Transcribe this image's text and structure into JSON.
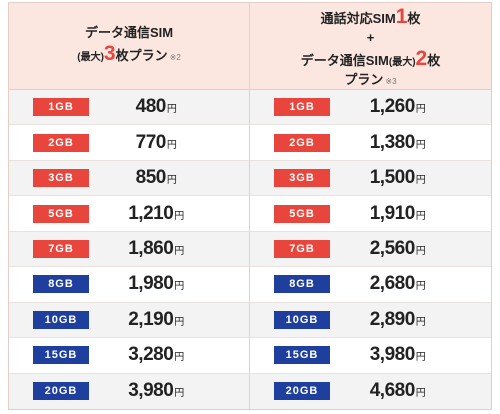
{
  "left_header": {
    "line1": "データ通信SIM",
    "line2_prefix": "(最大)",
    "line2_number": "3",
    "line2_suffix": "枚プラン",
    "line2_note": "※2"
  },
  "right_header": {
    "line1_prefix": "通話対応SIM",
    "line1_number": "1",
    "line1_suffix": "枚",
    "line2": "+",
    "line3_prefix": "データ通信SIM",
    "line3_max": "(最大)",
    "line3_number": "2",
    "line3_suffix": "枚",
    "line4": "プラン",
    "line4_note": "※3"
  },
  "yen": "円",
  "rows": [
    {
      "plan": "1GB",
      "color": "#e8453c",
      "left_price": "480",
      "right_price": "1,260"
    },
    {
      "plan": "2GB",
      "color": "#e8453c",
      "left_price": "770",
      "right_price": "1,380"
    },
    {
      "plan": "3GB",
      "color": "#e8453c",
      "left_price": "850",
      "right_price": "1,500"
    },
    {
      "plan": "5GB",
      "color": "#e8453c",
      "left_price": "1,210",
      "right_price": "1,910"
    },
    {
      "plan": "7GB",
      "color": "#e8453c",
      "left_price": "1,860",
      "right_price": "2,560"
    },
    {
      "plan": "8GB",
      "color": "#1e3f9e",
      "left_price": "1,980",
      "right_price": "2,680"
    },
    {
      "plan": "10GB",
      "color": "#1e3f9e",
      "left_price": "2,190",
      "right_price": "2,890"
    },
    {
      "plan": "15GB",
      "color": "#1e3f9e",
      "left_price": "3,280",
      "right_price": "3,980"
    },
    {
      "plan": "20GB",
      "color": "#1e3f9e",
      "left_price": "3,980",
      "right_price": "4,680"
    }
  ]
}
